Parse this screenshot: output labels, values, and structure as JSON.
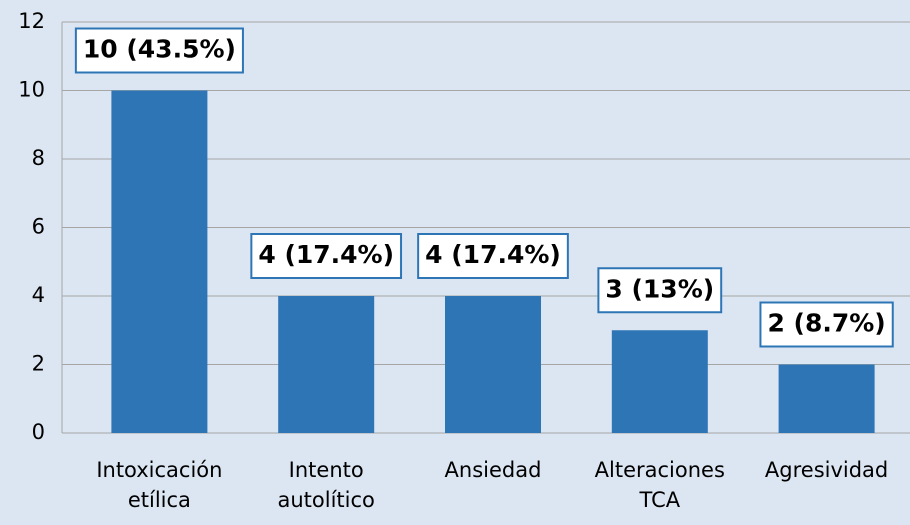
{
  "chart_data": {
    "type": "bar",
    "categories": [
      "Intoxicación etílica",
      "Intento autolítico",
      "Ansiedad",
      "Alteraciones TCA",
      "Agresividad"
    ],
    "values": [
      10,
      4,
      4,
      3,
      2
    ],
    "value_labels": [
      "10 (43.5%)",
      "4 (17.4%)",
      "4 (17.4%)",
      "3 (13%)",
      "2 (8.7%)"
    ],
    "color": "#2e75b6",
    "ylim": [
      0,
      12
    ],
    "yticks": [
      0,
      2,
      4,
      6,
      8,
      10,
      12
    ],
    "grid": true
  }
}
